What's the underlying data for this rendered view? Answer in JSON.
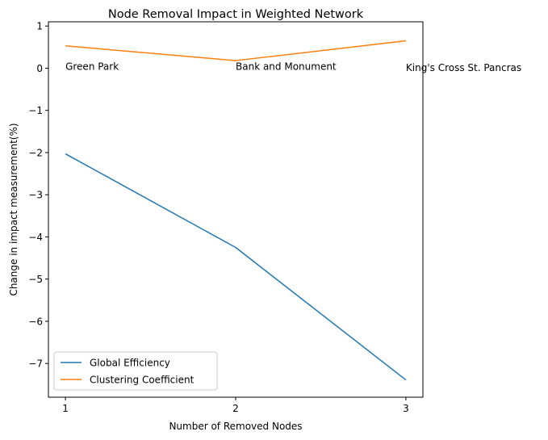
{
  "chart_data": {
    "type": "line",
    "title": "Node Removal Impact in Weighted Network",
    "xlabel": "Number of Removed Nodes",
    "ylabel": "Change in impact measurement(%)",
    "x": [
      1,
      2,
      3
    ],
    "xlim": [
      0.9,
      3.1
    ],
    "ylim": [
      -7.8,
      1.1
    ],
    "xticks": [
      1,
      2,
      3
    ],
    "yticks": [
      1,
      0,
      -1,
      -2,
      -3,
      -4,
      -5,
      -6,
      -7
    ],
    "ytick_labels": [
      "1",
      "0",
      "−1",
      "−2",
      "−3",
      "−4",
      "−5",
      "−6",
      "−7"
    ],
    "grid": false,
    "legend_position": "lower-left",
    "series": [
      {
        "name": "Global Efficiency",
        "color": "#1f77b4",
        "values": [
          -2.03,
          -4.25,
          -7.39
        ]
      },
      {
        "name": "Clustering Coefficient",
        "color": "#ff7f0e",
        "values": [
          0.53,
          0.18,
          0.65
        ]
      }
    ],
    "annotations": [
      {
        "text": "Green Park",
        "x": 1,
        "y": 0.0
      },
      {
        "text": "Bank and Monument",
        "x": 2,
        "y": 0.0
      },
      {
        "text": "King's Cross St. Pancras",
        "x": 3,
        "y": -0.03
      }
    ]
  }
}
